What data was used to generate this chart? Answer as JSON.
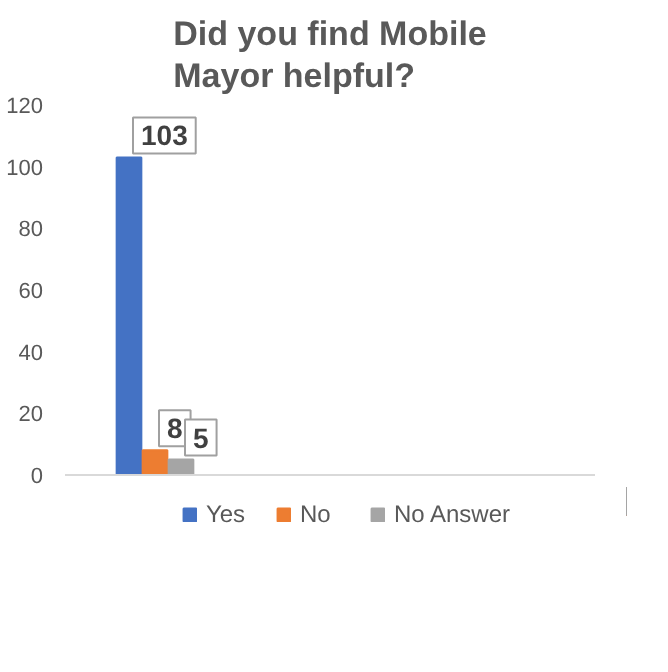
{
  "chart_data": {
    "type": "bar",
    "title": "Did you find Mobile Mayor helpful?",
    "categories": [
      null
    ],
    "series": [
      {
        "name": "Yes",
        "color": "#4472c4",
        "values": [
          103
        ]
      },
      {
        "name": "No",
        "color": "#ed7d31",
        "values": [
          8
        ]
      },
      {
        "name": "No Answer",
        "color": "#a5a5a5",
        "values": [
          5
        ]
      }
    ],
    "ylim": [
      0,
      120
    ],
    "yticks": [
      0,
      20,
      40,
      60,
      80,
      100,
      120
    ],
    "grid": false,
    "legend": "bottom",
    "data_labels": true
  }
}
